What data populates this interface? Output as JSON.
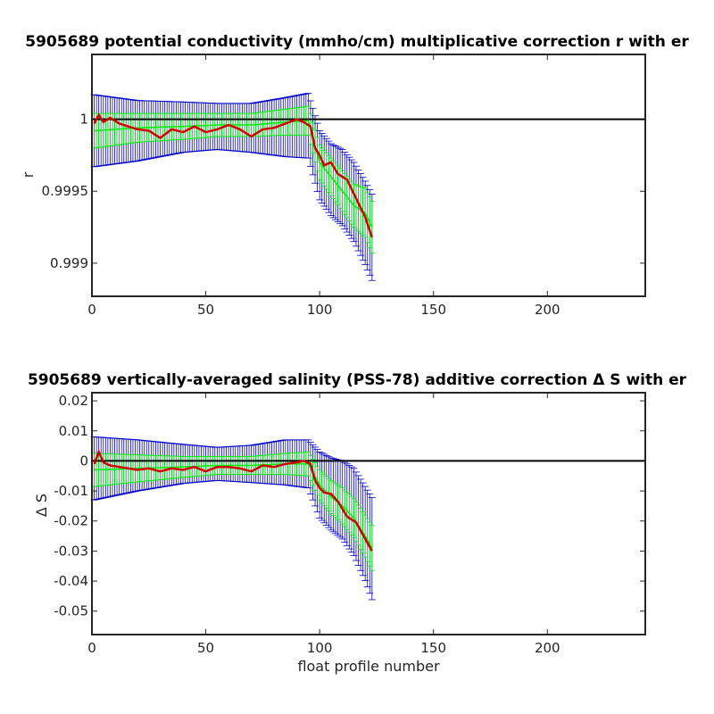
{
  "chart_data": [
    {
      "type": "line",
      "title": "5905689 potential conductivity (mmho/cm) multiplicative correction r with er",
      "xlabel": "",
      "ylabel": "r",
      "xlim": [
        0,
        243
      ],
      "ylim": [
        0.99877,
        1.00045
      ],
      "xticks": [
        0,
        50,
        100,
        150,
        200
      ],
      "xtick_labels": [
        "0",
        "50",
        "100",
        "150",
        "200"
      ],
      "yticks": [
        0.999,
        0.9995,
        1
      ],
      "ytick_labels": [
        "0.999",
        "0.9995",
        "1"
      ],
      "reference_line": 1,
      "grid": false,
      "colors": {
        "reference": "#000000",
        "mean": "#d40000",
        "error_wide": "#0000cc",
        "error_narrow": "#00ee00"
      },
      "series": [
        {
          "role": "error_wide",
          "x": [
            1,
            20,
            40,
            55,
            70,
            85,
            95,
            100,
            105,
            110,
            115,
            120,
            123
          ],
          "y": [
            0.99995,
            0.99995,
            0.99997,
            0.99997,
            0.99996,
            0.99997,
            0.99998,
            0.9997,
            0.9996,
            0.99955,
            0.99945,
            0.9993,
            0.9992
          ],
          "err_plus": [
            0.00022,
            0.00018,
            0.00015,
            0.00014,
            0.00015,
            0.00018,
            0.0002,
            0.00022,
            0.00023,
            0.00024,
            0.00025,
            0.00027,
            0.00028
          ],
          "err_minus": [
            0.00028,
            0.00024,
            0.0002,
            0.00018,
            0.00019,
            0.00023,
            0.00025,
            0.00026,
            0.00027,
            0.00029,
            0.0003,
            0.00031,
            0.00032
          ]
        },
        {
          "role": "error_narrow",
          "x": [
            1,
            20,
            40,
            55,
            70,
            85,
            95,
            100,
            105,
            110,
            115,
            120,
            123
          ],
          "y": [
            0.99992,
            0.99994,
            0.99995,
            0.99996,
            0.99996,
            0.99998,
            0.99999,
            0.9997,
            0.9996,
            0.9995,
            0.9994,
            0.99935,
            0.99925
          ],
          "err_plus": [
            0.00012,
            0.0001,
            9e-05,
            8e-05,
            8e-05,
            9e-05,
            0.0001,
            0.00012,
            0.00013,
            0.00014,
            0.00015,
            0.00017,
            0.00018
          ],
          "err_minus": [
            0.00012,
            0.0001,
            9e-05,
            8e-05,
            8e-05,
            9e-05,
            0.0001,
            0.00012,
            0.00013,
            0.00014,
            0.00015,
            0.00017,
            0.00018
          ]
        },
        {
          "role": "mean",
          "x": [
            1,
            3,
            5,
            8,
            12,
            16,
            20,
            25,
            30,
            35,
            40,
            45,
            50,
            55,
            60,
            65,
            70,
            75,
            80,
            85,
            90,
            93,
            96,
            98,
            100,
            102,
            105,
            108,
            112,
            116,
            120,
            123
          ],
          "y": [
            0.99997,
            1.00003,
            0.99998,
            1.00001,
            0.99997,
            0.99995,
            0.99993,
            0.99992,
            0.99987,
            0.99993,
            0.99991,
            0.99995,
            0.99991,
            0.99993,
            0.99996,
            0.99993,
            0.99988,
            0.99993,
            0.99994,
            0.99997,
            1.0,
            0.99998,
            0.99995,
            0.9998,
            0.99975,
            0.99968,
            0.9997,
            0.99962,
            0.99958,
            0.99945,
            0.99932,
            0.99918
          ]
        }
      ]
    },
    {
      "type": "line",
      "title": "5905689 vertically-averaged salinity (PSS-78) additive correction Δ S with er",
      "xlabel": "float profile number",
      "ylabel": "Δ S",
      "xlim": [
        0,
        243
      ],
      "ylim": [
        -0.0578,
        0.0227
      ],
      "xticks": [
        0,
        50,
        100,
        150,
        200
      ],
      "xtick_labels": [
        "0",
        "50",
        "100",
        "150",
        "200"
      ],
      "yticks": [
        0.02,
        0.01,
        0,
        -0.01,
        -0.02,
        -0.03,
        -0.04,
        -0.05
      ],
      "ytick_labels": [
        "0.02",
        "0.01",
        "0",
        "-0.01",
        "-0.02",
        "-0.03",
        "-0.04",
        "-0.05"
      ],
      "reference_line": 0,
      "grid": false,
      "colors": {
        "reference": "#000000",
        "mean": "#d40000",
        "error_wide": "#0000cc",
        "error_narrow": "#00ee00"
      },
      "series": [
        {
          "role": "error_wide",
          "x": [
            1,
            20,
            40,
            55,
            70,
            85,
            95,
            100,
            105,
            110,
            115,
            120,
            123
          ],
          "y": [
            -0.0025,
            -0.0015,
            -0.001,
            -0.001,
            -0.001,
            -0.0005,
            0.0,
            -0.008,
            -0.011,
            -0.013,
            -0.017,
            -0.024,
            -0.029
          ],
          "err_plus": [
            0.0105,
            0.0085,
            0.0065,
            0.0055,
            0.0062,
            0.0075,
            0.007,
            0.011,
            0.012,
            0.013,
            0.0145,
            0.0155,
            0.0168
          ],
          "err_minus": [
            0.0105,
            0.0085,
            0.0065,
            0.0055,
            0.0062,
            0.0075,
            0.009,
            0.011,
            0.012,
            0.013,
            0.0145,
            0.0158,
            0.0172
          ]
        },
        {
          "role": "error_narrow",
          "x": [
            1,
            20,
            40,
            55,
            70,
            85,
            95,
            100,
            105,
            110,
            115,
            120,
            123
          ],
          "y": [
            -0.003,
            -0.0025,
            -0.002,
            -0.0015,
            -0.0015,
            -0.001,
            -0.001,
            -0.008,
            -0.012,
            -0.015,
            -0.019,
            -0.025,
            -0.029
          ],
          "err_plus": [
            0.0055,
            0.0045,
            0.0035,
            0.003,
            0.003,
            0.0035,
            0.004,
            0.005,
            0.0055,
            0.006,
            0.0065,
            0.007,
            0.0075
          ],
          "err_minus": [
            0.0055,
            0.0045,
            0.0035,
            0.003,
            0.003,
            0.0035,
            0.004,
            0.005,
            0.0055,
            0.006,
            0.0065,
            0.007,
            0.0075
          ]
        },
        {
          "role": "mean",
          "x": [
            1,
            3,
            5,
            8,
            12,
            16,
            20,
            25,
            30,
            35,
            40,
            45,
            50,
            55,
            60,
            65,
            70,
            75,
            80,
            85,
            90,
            93,
            96,
            98,
            100,
            102,
            105,
            108,
            112,
            116,
            120,
            123
          ],
          "y": [
            -0.001,
            0.003,
            -0.0005,
            -0.0015,
            -0.002,
            -0.0025,
            -0.003,
            -0.0025,
            -0.0035,
            -0.0025,
            -0.003,
            -0.002,
            -0.0035,
            -0.002,
            -0.002,
            -0.0025,
            -0.0035,
            -0.0015,
            -0.002,
            -0.001,
            -0.0005,
            0.0,
            -0.001,
            -0.0065,
            -0.009,
            -0.0105,
            -0.011,
            -0.0135,
            -0.0185,
            -0.0205,
            -0.026,
            -0.03
          ]
        }
      ]
    }
  ]
}
